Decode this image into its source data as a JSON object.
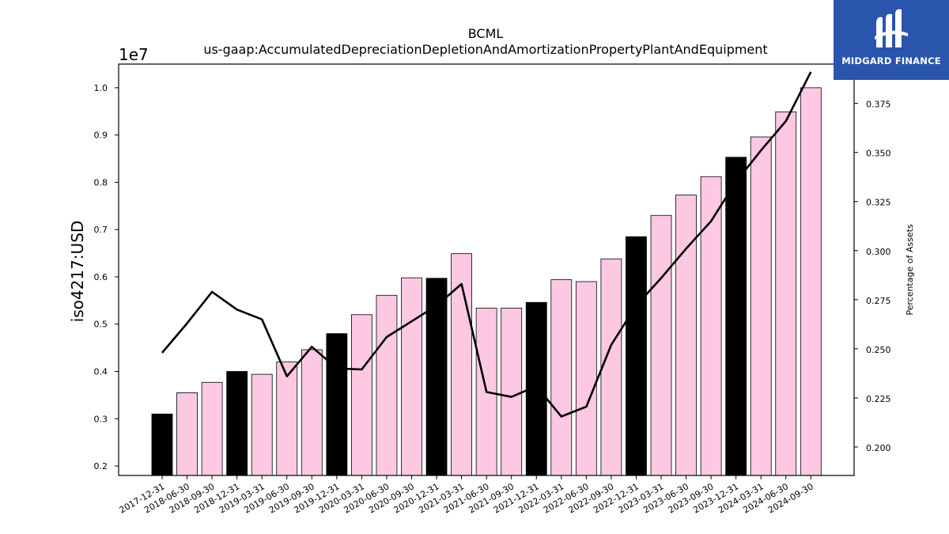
{
  "logo": {
    "text": "MIDGARD FINANCE",
    "color": "#2a55ad"
  },
  "chart_data": {
    "type": "bar",
    "title": "BCML",
    "subtitle": "us-gaap:AccumulatedDepreciationDepletionAndAmortizationPropertyPlantAndEquipment",
    "ylabel": "iso4217:USD",
    "y_exponent_label": "1e7",
    "y2label": "Percentage of Assets",
    "ylim": [
      0.18,
      1.05
    ],
    "y_ticks": [
      "0.2",
      "0.3",
      "0.4",
      "0.5",
      "0.6",
      "0.7",
      "0.8",
      "0.9",
      "1.0"
    ],
    "y2lim": [
      0.1855,
      0.395
    ],
    "y2_ticks": [
      "0.200",
      "0.225",
      "0.250",
      "0.275",
      "0.300",
      "0.325",
      "0.350",
      "0.375"
    ],
    "categories": [
      "2017-12-31",
      "2018-06-30",
      "2018-09-30",
      "2018-12-31",
      "2019-03-31",
      "2019-06-30",
      "2019-09-30",
      "2019-12-31",
      "2020-03-31",
      "2020-06-30",
      "2020-09-30",
      "2020-12-31",
      "2021-03-31",
      "2021-06-30",
      "2021-09-30",
      "2021-12-31",
      "2022-03-31",
      "2022-06-30",
      "2022-09-30",
      "2022-12-31",
      "2023-03-31",
      "2023-06-30",
      "2023-09-30",
      "2023-12-31",
      "2024-03-31",
      "2024-06-30",
      "2024-09-30"
    ],
    "series": [
      {
        "kind": "bar",
        "values": [
          0.31,
          0.355,
          0.377,
          0.4,
          0.394,
          0.42,
          0.446,
          0.48,
          0.52,
          0.561,
          0.598,
          0.597,
          0.649,
          0.534,
          0.534,
          0.546,
          0.594,
          0.59,
          0.638,
          0.685,
          0.73,
          0.773,
          0.812,
          0.853,
          0.896,
          0.949,
          1.0
        ],
        "annual": [
          true,
          false,
          false,
          true,
          false,
          false,
          false,
          true,
          false,
          false,
          false,
          true,
          false,
          false,
          false,
          true,
          false,
          false,
          false,
          true,
          false,
          false,
          false,
          true,
          false,
          false,
          false
        ],
        "annual_color": "#000000",
        "quarter_color": "#fcc8e2"
      },
      {
        "kind": "line",
        "axis": "right",
        "values": [
          0.248,
          0.263,
          0.279,
          0.27,
          0.265,
          0.236,
          0.251,
          0.24,
          0.2395,
          0.256,
          0.264,
          0.272,
          0.283,
          0.228,
          0.2255,
          0.231,
          0.2155,
          0.2205,
          0.252,
          0.272,
          0.286,
          0.301,
          0.315,
          0.335,
          0.351,
          0.366,
          0.391
        ],
        "color": "#000000"
      }
    ],
    "grid": false,
    "legend": "none"
  }
}
